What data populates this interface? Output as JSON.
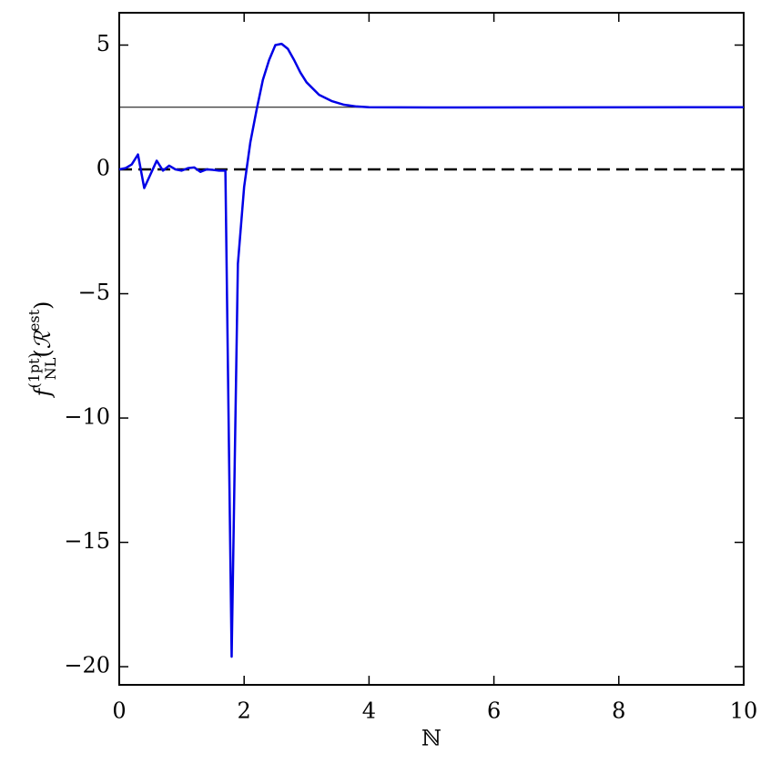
{
  "chart_data": {
    "type": "line",
    "xlabel": "ℕ",
    "ylabel": [
      "f",
      "(1pt)",
      "NL",
      "(",
      "ℛ",
      "est",
      ")"
    ],
    "x": [
      0,
      0.1,
      0.2,
      0.3,
      0.4,
      0.5,
      0.6,
      0.7,
      0.8,
      0.9,
      1.0,
      1.1,
      1.2,
      1.3,
      1.4,
      1.5,
      1.6,
      1.7,
      1.8,
      1.9,
      2.0,
      2.1,
      2.2,
      2.3,
      2.4,
      2.5,
      2.6,
      2.7,
      2.8,
      2.9,
      3.0,
      3.2,
      3.4,
      3.6,
      3.8,
      4.0,
      5.0,
      10.0
    ],
    "series": [
      {
        "color": "#0000e6",
        "values": [
          0,
          0.05,
          0.2,
          0.6,
          -0.75,
          -0.2,
          0.35,
          -0.05,
          0.15,
          0.0,
          -0.05,
          0.05,
          0.08,
          -0.1,
          0.0,
          -0.02,
          -0.05,
          -0.05,
          -19.6,
          -3.8,
          -0.7,
          1.1,
          2.4,
          3.6,
          4.4,
          5.0,
          5.05,
          4.85,
          4.4,
          3.9,
          3.5,
          3.0,
          2.75,
          2.6,
          2.53,
          2.5,
          2.49,
          2.5
        ]
      }
    ],
    "hlines": [
      {
        "y": 2.5,
        "style": "solid"
      },
      {
        "y": 0,
        "style": "dashed"
      }
    ],
    "xlim": [
      0,
      10
    ],
    "xticks": [
      0,
      2,
      4,
      6,
      8,
      10
    ],
    "ylim": [
      -20.73,
      6.3
    ],
    "yticks": [
      {
        "value": -20,
        "label": "−20"
      },
      {
        "value": -15,
        "label": "−15"
      },
      {
        "value": -10,
        "label": "−10"
      },
      {
        "value": -5,
        "label": "−5"
      },
      0,
      5
    ]
  }
}
